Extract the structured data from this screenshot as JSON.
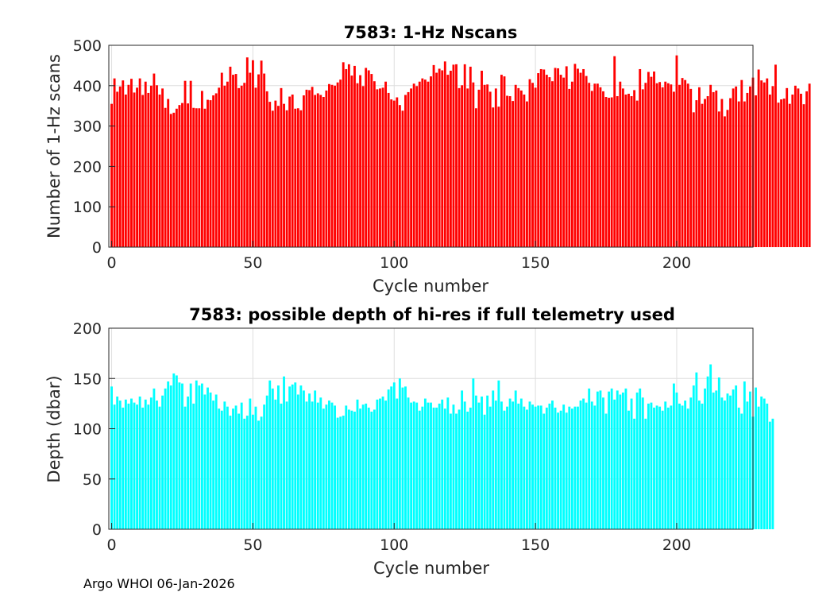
{
  "footer": "Argo WHOI 06-Jan-2026",
  "chart_data": [
    {
      "type": "bar",
      "title": "7583: 1-Hz Nscans",
      "xlabel": "Cycle number",
      "ylabel": "Number of 1-Hz scans",
      "xlim": [
        -1,
        227
      ],
      "ylim": [
        0,
        500
      ],
      "xticks": [
        0,
        50,
        100,
        150,
        200
      ],
      "yticks": [
        0,
        100,
        200,
        300,
        400,
        500
      ],
      "grid": true,
      "color": "#ff0000",
      "x_start": 0,
      "values": [
        355,
        418,
        385,
        398,
        413,
        378,
        402,
        417,
        383,
        395,
        418,
        377,
        410,
        382,
        400,
        430,
        401,
        378,
        393,
        345,
        367,
        330,
        333,
        343,
        352,
        357,
        412,
        356,
        412,
        345,
        344,
        344,
        387,
        343,
        365,
        364,
        376,
        381,
        395,
        432,
        400,
        410,
        447,
        427,
        429,
        394,
        400,
        407,
        470,
        432,
        463,
        395,
        428,
        462,
        430,
        386,
        360,
        338,
        363,
        350,
        394,
        355,
        339,
        373,
        378,
        343,
        344,
        339,
        376,
        390,
        389,
        397,
        377,
        381,
        377,
        372,
        388,
        404,
        402,
        400,
        408,
        415,
        458,
        441,
        453,
        425,
        449,
        406,
        426,
        399,
        444,
        438,
        429,
        411,
        391,
        393,
        395,
        410,
        382,
        366,
        363,
        371,
        352,
        338,
        377,
        384,
        393,
        405,
        399,
        410,
        418,
        415,
        410,
        423,
        451,
        432,
        442,
        438,
        460,
        427,
        437,
        452,
        453,
        394,
        401,
        453,
        393,
        447,
        408,
        344,
        390,
        437,
        402,
        403,
        385,
        346,
        393,
        348,
        427,
        423,
        375,
        374,
        362,
        402,
        394,
        388,
        378,
        361,
        416,
        407,
        395,
        431,
        441,
        440,
        427,
        421,
        411,
        444,
        443,
        427,
        420,
        448,
        392,
        410,
        454,
        442,
        432,
        441,
        424,
        407,
        387,
        405,
        405,
        396,
        386,
        372,
        370,
        371,
        473,
        374,
        410,
        393,
        378,
        380,
        374,
        389,
        363,
        441,
        391,
        407,
        434,
        422,
        435,
        406,
        409,
        396,
        410,
        406,
        403,
        385,
        475,
        402,
        419,
        414,
        405,
        392,
        334,
        364,
        396,
        355,
        367,
        374,
        402,
        384,
        388,
        336,
        367,
        324,
        340,
        369,
        393,
        398,
        361,
        414,
        361,
        382,
        398,
        420,
        376,
        440,
        413,
        408,
        418,
        378,
        399,
        452,
        358,
        366,
        368,
        394,
        355,
        378,
        400,
        393,
        380,
        354,
        386,
        405
      ]
    },
    {
      "type": "bar",
      "title": "7583: possible depth of hi-res if full telemetry used",
      "xlabel": "Cycle number",
      "ylabel": "Depth (dbar)",
      "xlim": [
        -1,
        227
      ],
      "ylim": [
        0,
        200
      ],
      "xticks": [
        0,
        50,
        100,
        150,
        200
      ],
      "yticks": [
        0,
        50,
        100,
        150,
        200
      ],
      "grid": true,
      "color": "#00ffff",
      "x_start": 0,
      "values": [
        142,
        124,
        132,
        128,
        121,
        129,
        125,
        130,
        126,
        124,
        132,
        121,
        129,
        124,
        131,
        140,
        128,
        122,
        133,
        140,
        147,
        143,
        155,
        153,
        146,
        145,
        122,
        132,
        145,
        125,
        148,
        143,
        145,
        134,
        141,
        136,
        128,
        134,
        120,
        118,
        127,
        122,
        113,
        120,
        123,
        115,
        126,
        110,
        113,
        130,
        114,
        122,
        108,
        112,
        124,
        133,
        148,
        140,
        129,
        143,
        125,
        152,
        127,
        142,
        144,
        146,
        134,
        143,
        138,
        127,
        135,
        127,
        138,
        126,
        131,
        120,
        124,
        128,
        126,
        123,
        111,
        112,
        113,
        123,
        119,
        118,
        117,
        129,
        120,
        124,
        125,
        121,
        117,
        119,
        129,
        130,
        132,
        128,
        139,
        142,
        146,
        130,
        150,
        141,
        142,
        131,
        126,
        127,
        126,
        118,
        122,
        130,
        126,
        126,
        121,
        121,
        125,
        129,
        120,
        131,
        115,
        124,
        115,
        119,
        138,
        127,
        117,
        121,
        150,
        133,
        126,
        132,
        114,
        133,
        122,
        138,
        128,
        148,
        127,
        118,
        122,
        130,
        127,
        138,
        125,
        130,
        122,
        119,
        127,
        124,
        122,
        123,
        123,
        115,
        121,
        125,
        128,
        121,
        116,
        118,
        124,
        116,
        122,
        120,
        122,
        122,
        128,
        130,
        126,
        140,
        127,
        123,
        137,
        138,
        131,
        115,
        137,
        140,
        129,
        138,
        134,
        136,
        140,
        118,
        130,
        110,
        136,
        140,
        131,
        110,
        125,
        126,
        121,
        123,
        122,
        118,
        127,
        121,
        123,
        145,
        136,
        125,
        123,
        128,
        120,
        131,
        143,
        156,
        128,
        125,
        140,
        152,
        164,
        136,
        138,
        151,
        131,
        128,
        135,
        133,
        139,
        143,
        121,
        115,
        147,
        127,
        137,
        112,
        141,
        122,
        132,
        130,
        125,
        107,
        110
      ]
    }
  ]
}
